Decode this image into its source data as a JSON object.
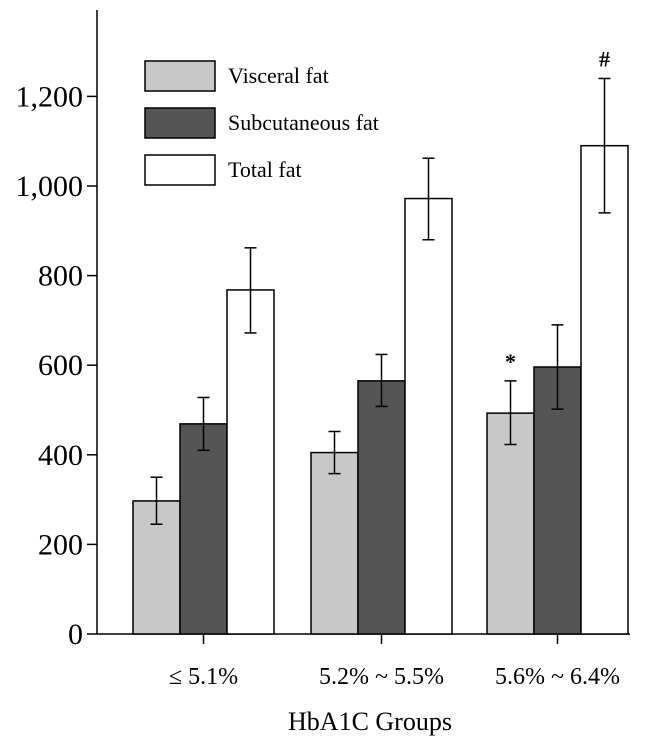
{
  "chart_data": {
    "type": "bar",
    "title": "",
    "xlabel": "HbA1C Groups",
    "ylabel": "",
    "categories": [
      "≤ 5.1%",
      "5.2% ~ 5.5%",
      "5.6% ~ 6.4%"
    ],
    "ylim": [
      0,
      1350
    ],
    "yticks": [
      0,
      200,
      400,
      600,
      800,
      1000,
      1200
    ],
    "ytick_labels": [
      "0",
      "200",
      "400",
      "600",
      "800",
      "1,000",
      "1,200"
    ],
    "legend_position": "top-left",
    "grid": false,
    "series": [
      {
        "name": "Visceral fat",
        "color": "#c8c8c8",
        "values": [
          297,
          405,
          493
        ],
        "error_low": [
          245,
          358,
          423
        ],
        "error_high": [
          350,
          452,
          565
        ]
      },
      {
        "name": "Subcutaneous fat",
        "color": "#555555",
        "values": [
          469,
          565,
          596
        ],
        "error_low": [
          410,
          508,
          502
        ],
        "error_high": [
          528,
          624,
          690
        ]
      },
      {
        "name": "Total fat",
        "color": "#ffffff",
        "values": [
          768,
          972,
          1090
        ],
        "error_low": [
          672,
          880,
          940
        ],
        "error_high": [
          862,
          1062,
          1240
        ]
      }
    ],
    "annotations": [
      {
        "text": "*",
        "category_index": 2,
        "series_index": 0
      },
      {
        "text": "#",
        "category_index": 2,
        "series_index": 2
      }
    ]
  }
}
